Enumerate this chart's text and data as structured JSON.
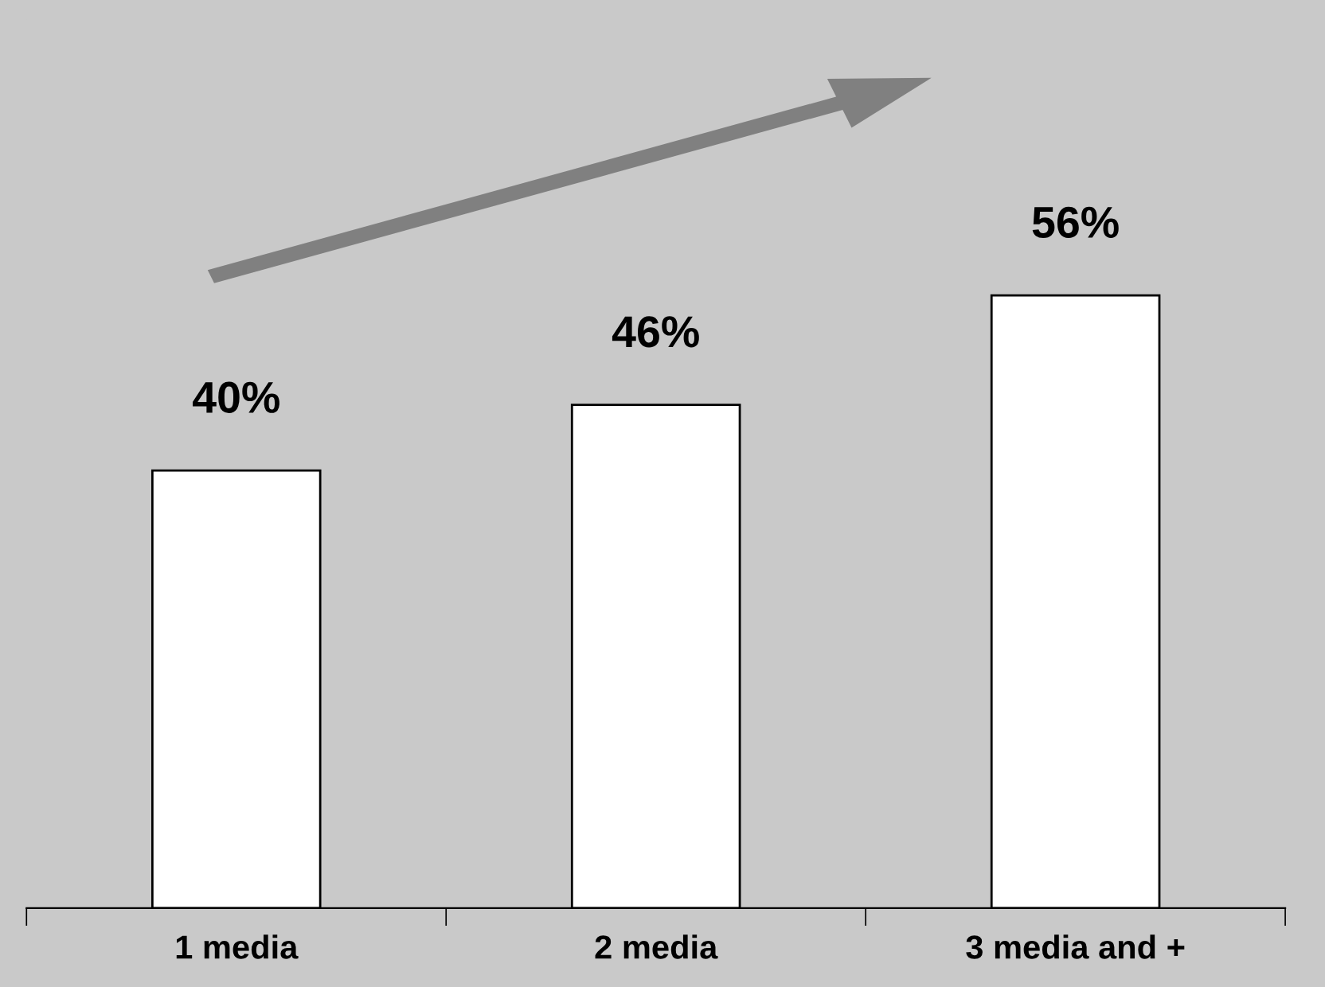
{
  "chart_data": {
    "type": "bar",
    "categories": [
      "1 media",
      "2 media",
      "3 media and +"
    ],
    "values": [
      40,
      46,
      56
    ],
    "color": "#ffffff",
    "value_labels": [
      "40%",
      "46%",
      "56%"
    ],
    "tick_labels": "x",
    "grid": false,
    "legend": false
  }
}
